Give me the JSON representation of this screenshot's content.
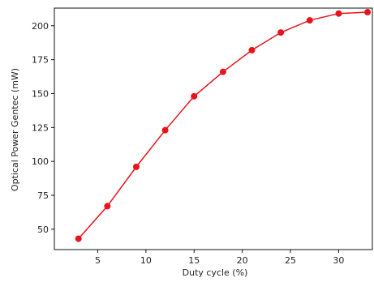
{
  "chart_data": {
    "type": "line",
    "title": "",
    "xlabel": "Duty cycle (%)",
    "ylabel": "Optical Power Gentec (mW)",
    "xlim": [
      0.5,
      33.5
    ],
    "ylim": [
      35,
      213
    ],
    "x_ticks": [
      5,
      10,
      15,
      20,
      25,
      30
    ],
    "y_ticks": [
      50,
      75,
      100,
      125,
      150,
      175,
      200
    ],
    "grid": false,
    "legend": "none",
    "series": [
      {
        "color": "#e8141c",
        "x": [
          3,
          6,
          9,
          12,
          15,
          18,
          21,
          24,
          27,
          30,
          33
        ],
        "y": [
          43,
          67,
          96,
          123,
          148,
          166,
          182,
          195,
          204,
          209,
          210
        ]
      }
    ]
  }
}
